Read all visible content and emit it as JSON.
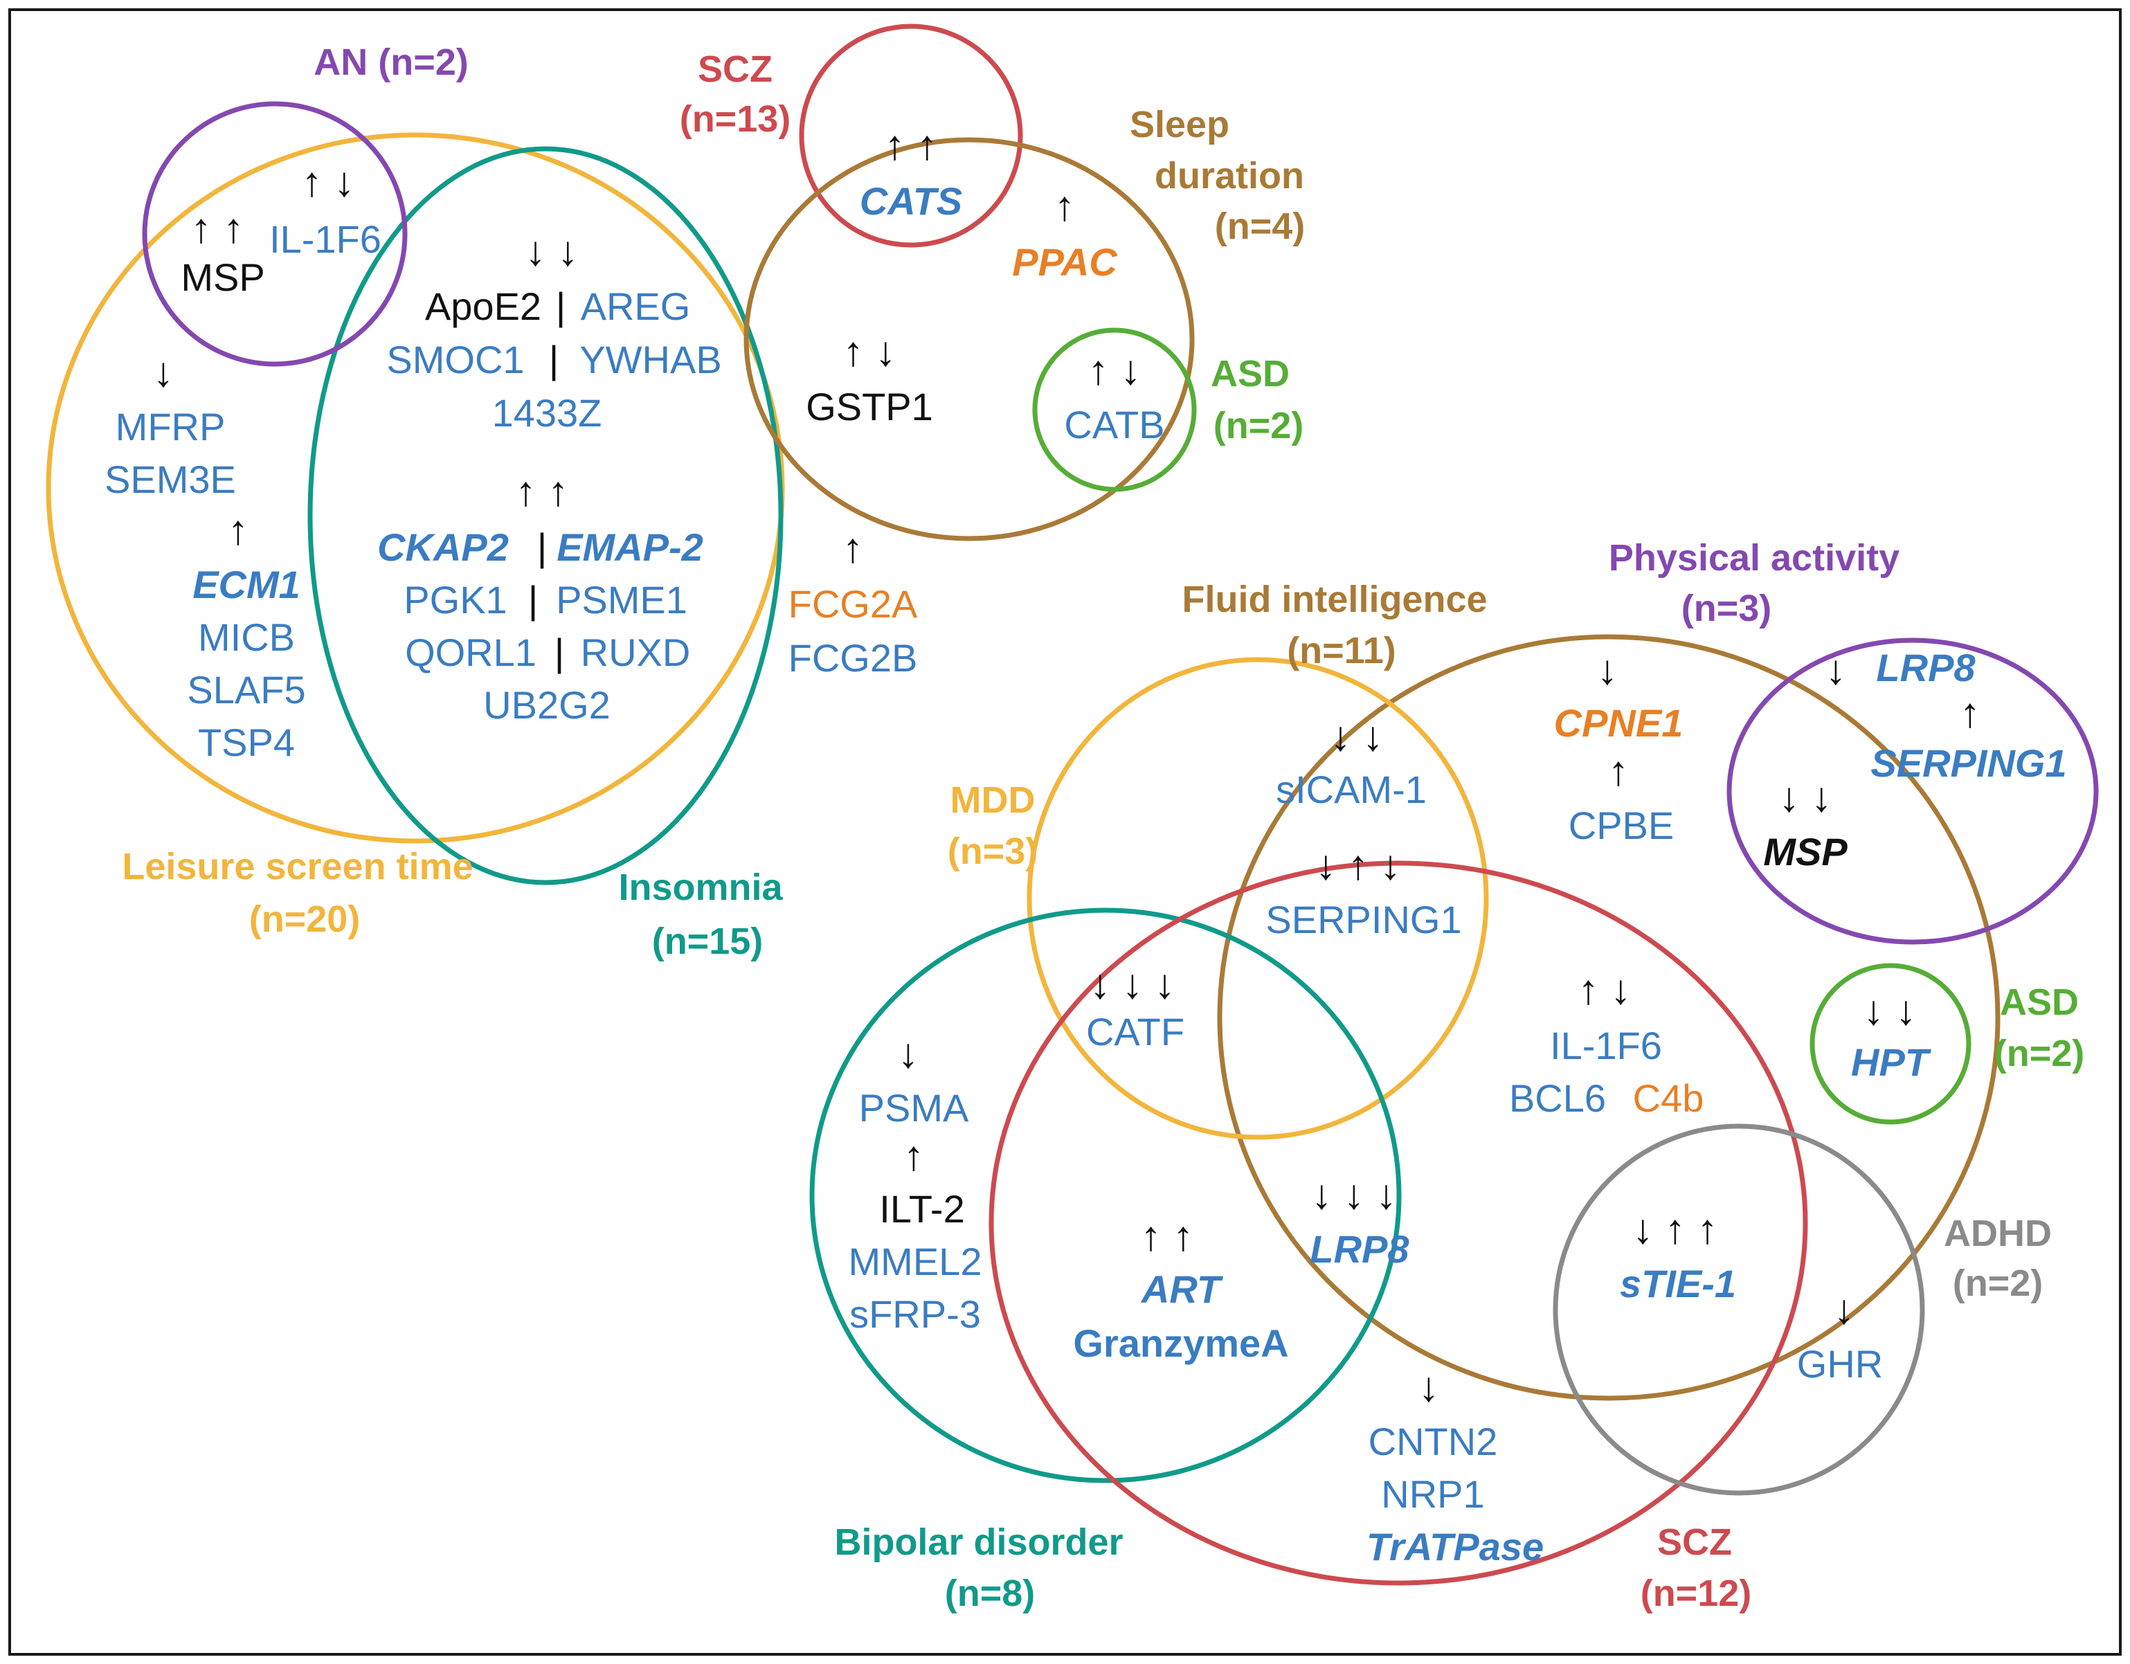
{
  "colors": {
    "blue": "#3a7cc2",
    "black": "#111111",
    "orange": "#e87f24",
    "purple": "#8448b0",
    "red": "#cd4a4f",
    "brown": "#a97a36",
    "teal": "#109a8a",
    "gold": "#f2b53c",
    "green": "#55ad36",
    "gray": "#8a8a8a"
  },
  "groups": {
    "an": {
      "name": "AN",
      "n": "(n=2)"
    },
    "scz_top": {
      "name": "SCZ",
      "n": "(n=13)"
    },
    "sleep": {
      "line1": "Sleep",
      "line2": "duration",
      "n": "(n=4)"
    },
    "asd_top": {
      "name": "ASD",
      "n": "(n=2)"
    },
    "leisure": {
      "name": "Leisure screen time",
      "n": "(n=20)"
    },
    "insomnia": {
      "name": "Insomnia",
      "n": "(n=15)"
    },
    "physical": {
      "name": "Physical activity",
      "n": "(n=3)"
    },
    "fluid": {
      "name": "Fluid intelligence",
      "n": "(n=11)"
    },
    "mdd": {
      "name": "MDD",
      "n": "(n=3)"
    },
    "asd_bottom": {
      "name": "ASD",
      "n": "(n=2)"
    },
    "adhd": {
      "name": "ADHD",
      "n": "(n=2)"
    },
    "bipolar": {
      "name": "Bipolar disorder",
      "n": "(n=8)"
    },
    "scz_bottom": {
      "name": "SCZ",
      "n": "(n=12)"
    }
  },
  "genes": {
    "il1f6_top": "IL-1F6",
    "msp_top": "MSP",
    "apoe2": "ApoE2",
    "areg": "AREG",
    "smoc1": "SMOC1",
    "ywhab": "YWHAB",
    "g1433z": "1433Z",
    "ckap2": "CKAP2",
    "emap2": "EMAP-2",
    "pgk1": "PGK1",
    "psme1": "PSME1",
    "qorl1": "QORL1",
    "ruxd": "RUXD",
    "ub2g2": "UB2G2",
    "mfrp": "MFRP",
    "sem3e": "SEM3E",
    "ecm1": "ECM1",
    "micb": "MICB",
    "slaf5": "SLAF5",
    "tsp4": "TSP4",
    "cats": "CATS",
    "ppac": "PPAC",
    "gstp1": "GSTP1",
    "catb": "CATB",
    "fcg2a": "FCG2A",
    "fcg2b": "FCG2B",
    "lrp8_top": "LRP8",
    "serping1_top": "SERPING1",
    "msp_bottom": "MSP",
    "cpne1": "CPNE1",
    "cpbe": "CPBE",
    "sicam1": "sICAM-1",
    "serping1_mid": "SERPING1",
    "catf": "CATF",
    "il1f6_bottom": "IL-1F6",
    "bcl6": "BCL6",
    "c4b": "C4b",
    "hpt": "HPT",
    "psma": "PSMA",
    "ilt2": "ILT-2",
    "mmel2": "MMEL2",
    "sfrp3": "sFRP-3",
    "art": "ART",
    "granzymea": "GranzymeA",
    "lrp8_bottom": "LRP8",
    "stie1": "sTIE-1",
    "ghr": "GHR",
    "cntn2": "CNTN2",
    "nrp1": "NRP1",
    "tratpase": "TrATPase"
  },
  "arrows": {
    "an_pair1": "↑ ↓",
    "an_pair2": "↑ ↑",
    "insomnia_down": "↓ ↓",
    "insomnia_up": "↑ ↑",
    "leisure_down": "↓",
    "leisure_up": "↑",
    "cats": "↑ ↑",
    "ppac": "↑",
    "gstp1": "↑ ↓",
    "catb": "↑ ↓",
    "fcg2a": "↑",
    "lrp8_top": "↓",
    "serping1_top": "↑",
    "msp_bottom": "↓ ↓",
    "cpne1": "↓",
    "cpbe": "↑",
    "sicam1": "↓ ↓",
    "serping1_mid": "↓ ↑ ↓",
    "catf": "↓ ↓ ↓",
    "il1f6_bottom": "↑ ↓",
    "hpt": "↓ ↓",
    "psma": "↓",
    "ilt2": "↑",
    "art": "↑ ↑",
    "lrp8_bottom": "↓ ↓ ↓",
    "stie1": "↓ ↑ ↑",
    "ghr": "↓",
    "cntn2": "↓"
  },
  "separator": "|"
}
